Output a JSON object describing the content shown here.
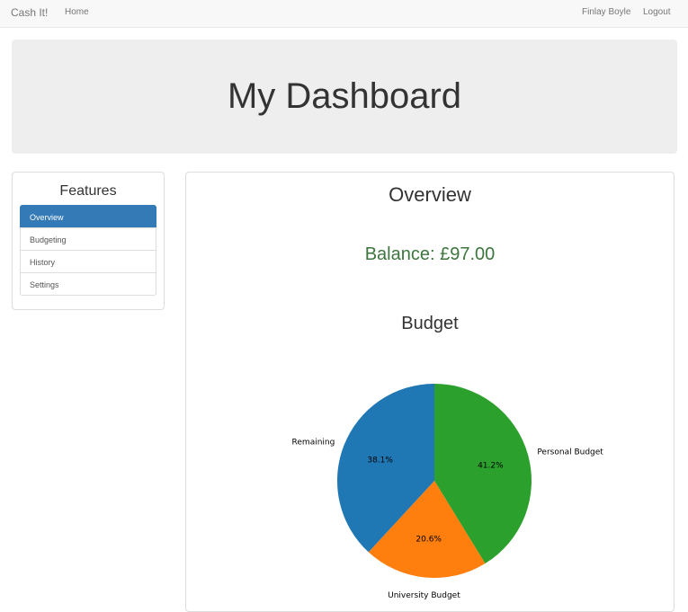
{
  "navbar": {
    "brand": "Cash It!",
    "home": "Home",
    "user": "Finlay Boyle",
    "logout": "Logout"
  },
  "header": {
    "title": "My Dashboard"
  },
  "sidebar": {
    "title": "Features",
    "items": [
      {
        "label": "Overview",
        "active": true
      },
      {
        "label": "Budgeting",
        "active": false
      },
      {
        "label": "History",
        "active": false
      },
      {
        "label": "Settings",
        "active": false
      }
    ]
  },
  "main": {
    "title": "Overview",
    "balance": "Balance: £97.00",
    "budget_title": "Budget"
  },
  "chart_data": {
    "type": "pie",
    "slices": [
      {
        "label": "Personal Budget",
        "value": 41.2,
        "pct_label": "41.2%",
        "color": "#2ca02c"
      },
      {
        "label": "University Budget",
        "value": 20.6,
        "pct_label": "20.6%",
        "color": "#ff7f0e"
      },
      {
        "label": "Remaining",
        "value": 38.1,
        "pct_label": "38.1%",
        "color": "#1f77b4"
      }
    ]
  },
  "colors": {
    "primary": "#337ab7",
    "balance": "#3c763d"
  }
}
